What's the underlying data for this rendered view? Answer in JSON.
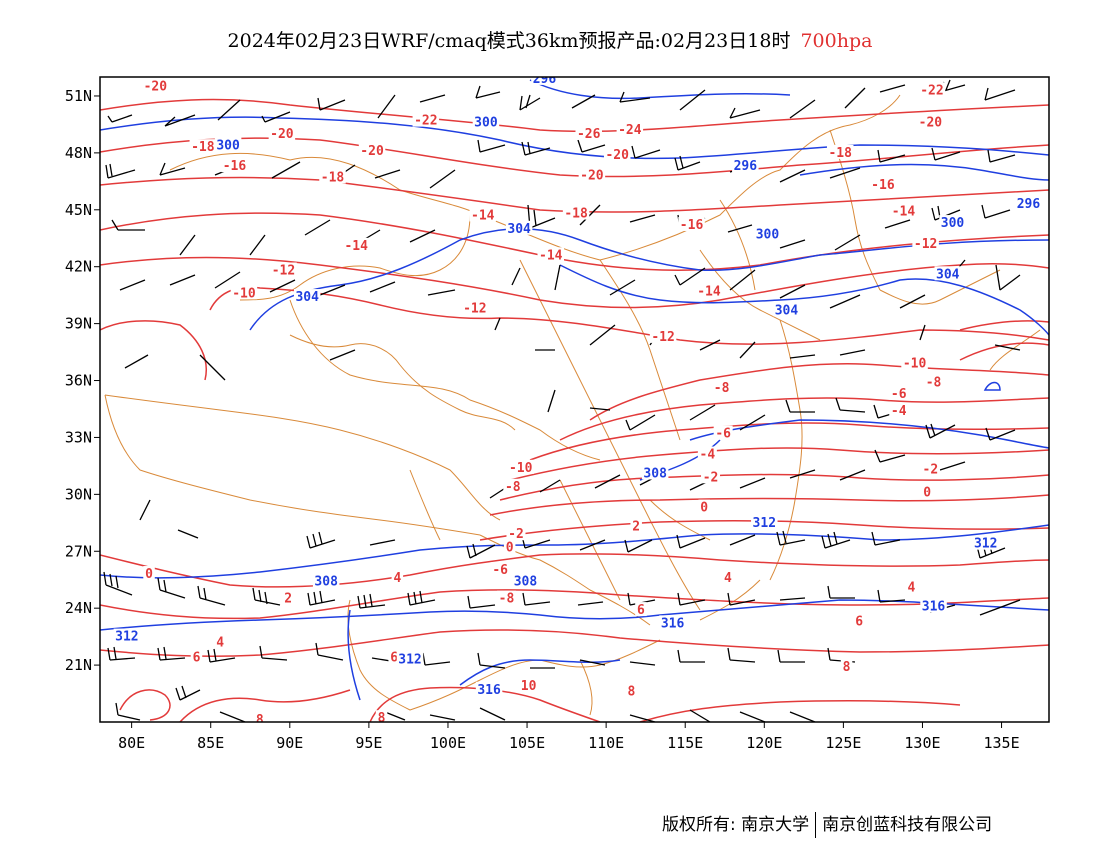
{
  "title": {
    "main": "2024年02月23日WRF/cmaq模式36km预报产品:02月23日18时",
    "level": "700hpa"
  },
  "colors": {
    "temperature_contour": "#e23a3a",
    "geopotential_contour": "#1f3fe0",
    "border": "#d98a3a",
    "wind_barb": "#000000",
    "level_label": "#e03030"
  },
  "map": {
    "lon_ticks": [
      "80E",
      "85E",
      "90E",
      "95E",
      "100E",
      "105E",
      "110E",
      "115E",
      "120E",
      "125E",
      "130E",
      "135E"
    ],
    "lat_ticks": [
      "51N",
      "48N",
      "45N",
      "42N",
      "39N",
      "36N",
      "33N",
      "30N",
      "27N",
      "24N",
      "21N"
    ],
    "lon_range": [
      78,
      138
    ],
    "lat_range": [
      18,
      52
    ]
  },
  "temperature_labels": [
    {
      "text": "-20",
      "lon": 81.5,
      "lat": 51.5
    },
    {
      "text": "-18",
      "lon": 84.5,
      "lat": 48.3
    },
    {
      "text": "-20",
      "lon": 89.5,
      "lat": 49.0
    },
    {
      "text": "-16",
      "lon": 86.5,
      "lat": 47.3
    },
    {
      "text": "-20",
      "lon": 95.2,
      "lat": 48.1
    },
    {
      "text": "-22",
      "lon": 98.6,
      "lat": 49.7
    },
    {
      "text": "-18",
      "lon": 92.7,
      "lat": 46.7
    },
    {
      "text": "-26",
      "lon": 108.9,
      "lat": 49.0
    },
    {
      "text": "-24",
      "lon": 111.5,
      "lat": 49.2
    },
    {
      "text": "-20",
      "lon": 110.7,
      "lat": 47.9
    },
    {
      "text": "-20",
      "lon": 109.1,
      "lat": 46.8
    },
    {
      "text": "-18",
      "lon": 108.1,
      "lat": 44.8
    },
    {
      "text": "-14",
      "lon": 102.2,
      "lat": 44.7
    },
    {
      "text": "-16",
      "lon": 115.4,
      "lat": 44.2
    },
    {
      "text": "-14",
      "lon": 94.2,
      "lat": 43.1
    },
    {
      "text": "-14",
      "lon": 106.5,
      "lat": 42.6
    },
    {
      "text": "-12",
      "lon": 89.6,
      "lat": 41.8
    },
    {
      "text": "-10",
      "lon": 87.1,
      "lat": 40.6
    },
    {
      "text": "-12",
      "lon": 101.7,
      "lat": 39.8
    },
    {
      "text": "-14",
      "lon": 116.5,
      "lat": 40.7
    },
    {
      "text": "-12",
      "lon": 113.6,
      "lat": 38.3
    },
    {
      "text": "-22",
      "lon": 130.6,
      "lat": 51.3
    },
    {
      "text": "-20",
      "lon": 130.5,
      "lat": 49.6
    },
    {
      "text": "-18",
      "lon": 124.8,
      "lat": 48.0
    },
    {
      "text": "-16",
      "lon": 127.5,
      "lat": 46.3
    },
    {
      "text": "-14",
      "lon": 128.8,
      "lat": 44.9
    },
    {
      "text": "-12",
      "lon": 130.2,
      "lat": 43.2
    },
    {
      "text": "-10",
      "lon": 129.5,
      "lat": 36.9
    },
    {
      "text": "-8",
      "lon": 130.7,
      "lat": 35.9
    },
    {
      "text": "-6",
      "lon": 128.5,
      "lat": 35.3
    },
    {
      "text": "-4",
      "lon": 128.5,
      "lat": 34.4
    },
    {
      "text": "-8",
      "lon": 117.3,
      "lat": 35.6
    },
    {
      "text": "-6",
      "lon": 117.4,
      "lat": 33.2
    },
    {
      "text": "-4",
      "lon": 116.4,
      "lat": 32.1
    },
    {
      "text": "-2",
      "lon": 116.6,
      "lat": 30.9
    },
    {
      "text": "-2",
      "lon": 130.5,
      "lat": 31.3
    },
    {
      "text": "0",
      "lon": 130.3,
      "lat": 30.1
    },
    {
      "text": "0",
      "lon": 116.2,
      "lat": 29.3
    },
    {
      "text": "2",
      "lon": 111.9,
      "lat": 28.3
    },
    {
      "text": "-10",
      "lon": 104.6,
      "lat": 31.4
    },
    {
      "text": "-8",
      "lon": 104.1,
      "lat": 30.4
    },
    {
      "text": "-2",
      "lon": 104.3,
      "lat": 27.9
    },
    {
      "text": "0",
      "lon": 103.9,
      "lat": 27.2
    },
    {
      "text": "-6",
      "lon": 103.3,
      "lat": 26.0
    },
    {
      "text": "-8",
      "lon": 103.7,
      "lat": 24.5
    },
    {
      "text": "0",
      "lon": 81.1,
      "lat": 25.8
    },
    {
      "text": "2",
      "lon": 89.9,
      "lat": 24.5
    },
    {
      "text": "4",
      "lon": 96.8,
      "lat": 25.6
    },
    {
      "text": "4",
      "lon": 85.6,
      "lat": 22.2
    },
    {
      "text": "6",
      "lon": 84.1,
      "lat": 21.4
    },
    {
      "text": "6",
      "lon": 96.6,
      "lat": 21.4
    },
    {
      "text": "4",
      "lon": 117.7,
      "lat": 25.6
    },
    {
      "text": "6",
      "lon": 112.2,
      "lat": 23.9
    },
    {
      "text": "4",
      "lon": 129.3,
      "lat": 25.1
    },
    {
      "text": "6",
      "lon": 126.0,
      "lat": 23.3
    },
    {
      "text": "8",
      "lon": 125.2,
      "lat": 20.9
    },
    {
      "text": "8",
      "lon": 111.6,
      "lat": 19.6
    },
    {
      "text": "10",
      "lon": 105.1,
      "lat": 19.9
    },
    {
      "text": "8",
      "lon": 95.8,
      "lat": 18.2
    },
    {
      "text": "8",
      "lon": 88.1,
      "lat": 18.1
    }
  ],
  "geopotential_labels": [
    {
      "text": "296",
      "lon": 106.1,
      "lat": 51.9
    },
    {
      "text": "300",
      "lon": 86.1,
      "lat": 48.4
    },
    {
      "text": "300",
      "lon": 102.4,
      "lat": 49.6
    },
    {
      "text": "296",
      "lon": 118.8,
      "lat": 47.3
    },
    {
      "text": "304",
      "lon": 104.5,
      "lat": 44.0
    },
    {
      "text": "300",
      "lon": 120.2,
      "lat": 43.7
    },
    {
      "text": "300",
      "lon": 131.9,
      "lat": 44.3
    },
    {
      "text": "296",
      "lon": 136.7,
      "lat": 45.3
    },
    {
      "text": "304",
      "lon": 91.1,
      "lat": 40.4
    },
    {
      "text": "304",
      "lon": 121.4,
      "lat": 39.7
    },
    {
      "text": "304",
      "lon": 131.6,
      "lat": 41.6
    },
    {
      "text": "308",
      "lon": 113.1,
      "lat": 31.1
    },
    {
      "text": "312",
      "lon": 120.0,
      "lat": 28.5
    },
    {
      "text": "312",
      "lon": 134.0,
      "lat": 27.4
    },
    {
      "text": "308",
      "lon": 92.3,
      "lat": 25.4
    },
    {
      "text": "308",
      "lon": 104.9,
      "lat": 25.4
    },
    {
      "text": "312",
      "lon": 79.7,
      "lat": 22.5
    },
    {
      "text": "312",
      "lon": 97.6,
      "lat": 21.3
    },
    {
      "text": "316",
      "lon": 114.2,
      "lat": 23.2
    },
    {
      "text": "316",
      "lon": 130.7,
      "lat": 24.1
    },
    {
      "text": "316",
      "lon": 102.6,
      "lat": 19.7
    }
  ],
  "footer": {
    "copyright": "版权所有: 南京大学",
    "company": "南京创蓝科技有限公司"
  }
}
